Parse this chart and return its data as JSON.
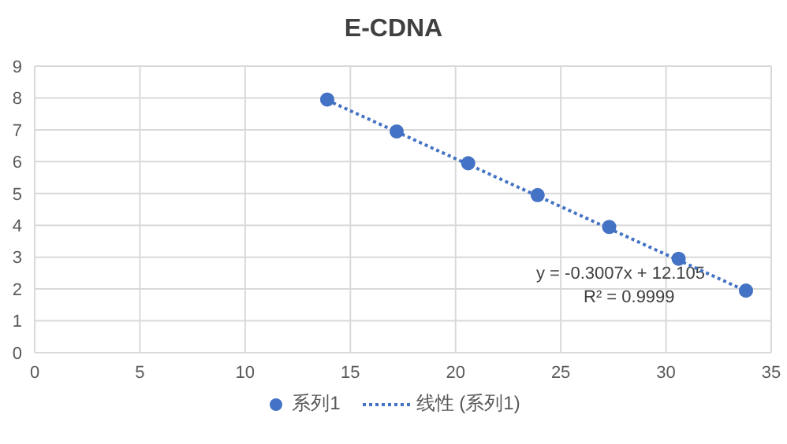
{
  "chart_data": {
    "type": "scatter",
    "title": "E-CDNA",
    "x": [
      13.9,
      17.2,
      20.6,
      23.9,
      27.3,
      30.6,
      33.8
    ],
    "series": [
      {
        "name": "系列1",
        "color": "#4472c4",
        "marker": "circle",
        "values": [
          7.95,
          6.95,
          5.95,
          4.95,
          3.95,
          2.95,
          1.95
        ]
      },
      {
        "name": "线性 (系列1)",
        "type": "line",
        "color": "#4472c4",
        "line_style": "dotted",
        "marker": "none",
        "x": [
          13.9,
          33.8
        ],
        "values": [
          7.93,
          1.94
        ]
      }
    ],
    "xlim": [
      0,
      35
    ],
    "xticks": [
      0,
      5,
      10,
      15,
      20,
      25,
      30,
      35
    ],
    "ylim": [
      0,
      9
    ],
    "yticks": [
      0,
      1,
      2,
      3,
      4,
      5,
      6,
      7,
      8,
      9
    ],
    "grid": true,
    "legend": "bottom",
    "annotations": [
      "y = -0.3007x + 12.105",
      "R² = 0.9999"
    ]
  }
}
